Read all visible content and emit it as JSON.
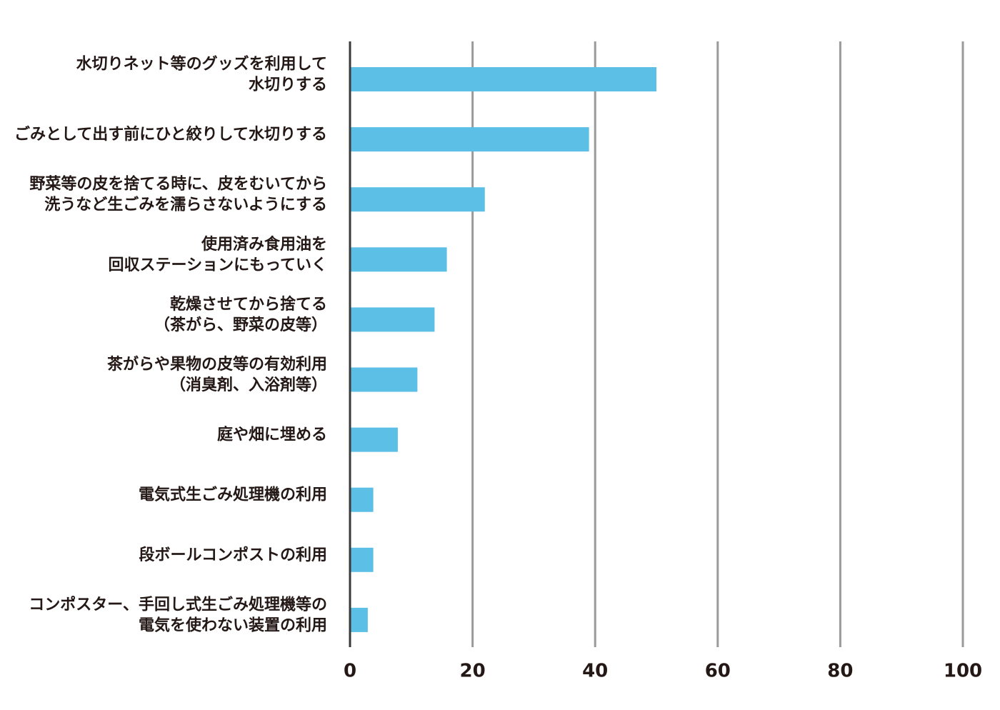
{
  "chart_data": {
    "type": "bar",
    "orientation": "horizontal",
    "title": "",
    "xlabel": "",
    "ylabel": "",
    "xlim": [
      0,
      100
    ],
    "xticks": [
      0,
      20,
      40,
      60,
      80,
      100
    ],
    "grid": true,
    "bar_color": "#5bbfe6",
    "categories": [
      [
        "水切りネット等のグッズを利用して",
        "水切りする"
      ],
      [
        "ごみとして出す前にひと絞りして水切りする"
      ],
      [
        "野菜等の皮を捨てる時に、皮をむいてから",
        "洗うなど生ごみを濡らさないようにする"
      ],
      [
        "使用済み食用油を",
        "回収ステーションにもっていく"
      ],
      [
        "乾燥させてから捨てる",
        "（茶がら、野菜の皮等）"
      ],
      [
        "茶がらや果物の皮等の有効利用",
        "（消臭剤、入浴剤等）"
      ],
      [
        "庭や畑に埋める"
      ],
      [
        "電気式生ごみ処理機の利用"
      ],
      [
        "段ボールコンポストの利用"
      ],
      [
        "コンポスター、手回し式生ごみ処理機等の",
        "電気を使わない装置の利用"
      ]
    ],
    "values": [
      50,
      39,
      22,
      15.8,
      13.8,
      11,
      7.8,
      3.8,
      3.8,
      2.9
    ]
  }
}
